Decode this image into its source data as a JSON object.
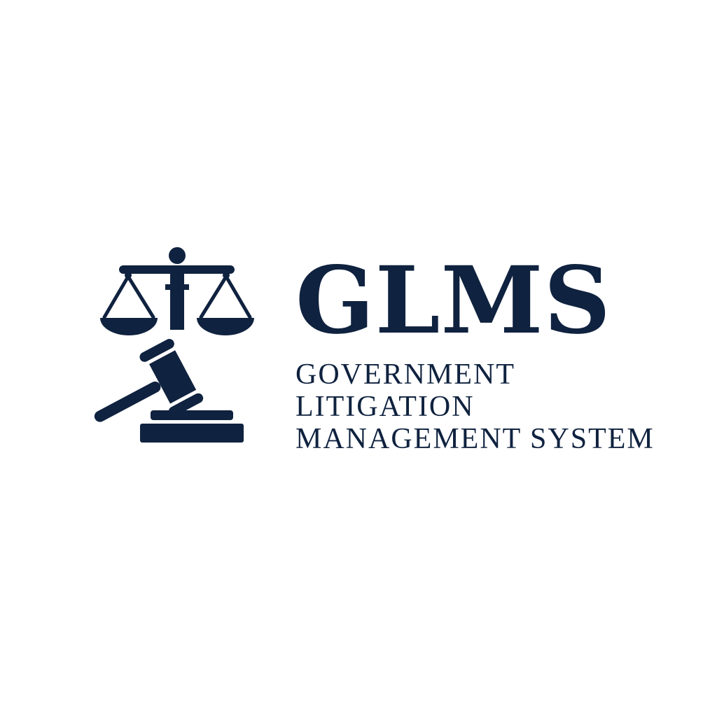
{
  "brand": {
    "acronym": "GLMS",
    "full_name_lines": [
      "GOVERNMENT",
      "LITIGATION",
      "MANAGEMENT SYSTEM"
    ],
    "icon": "scales-and-gavel-icon",
    "color": "#0f223f",
    "background": "#ffffff"
  }
}
